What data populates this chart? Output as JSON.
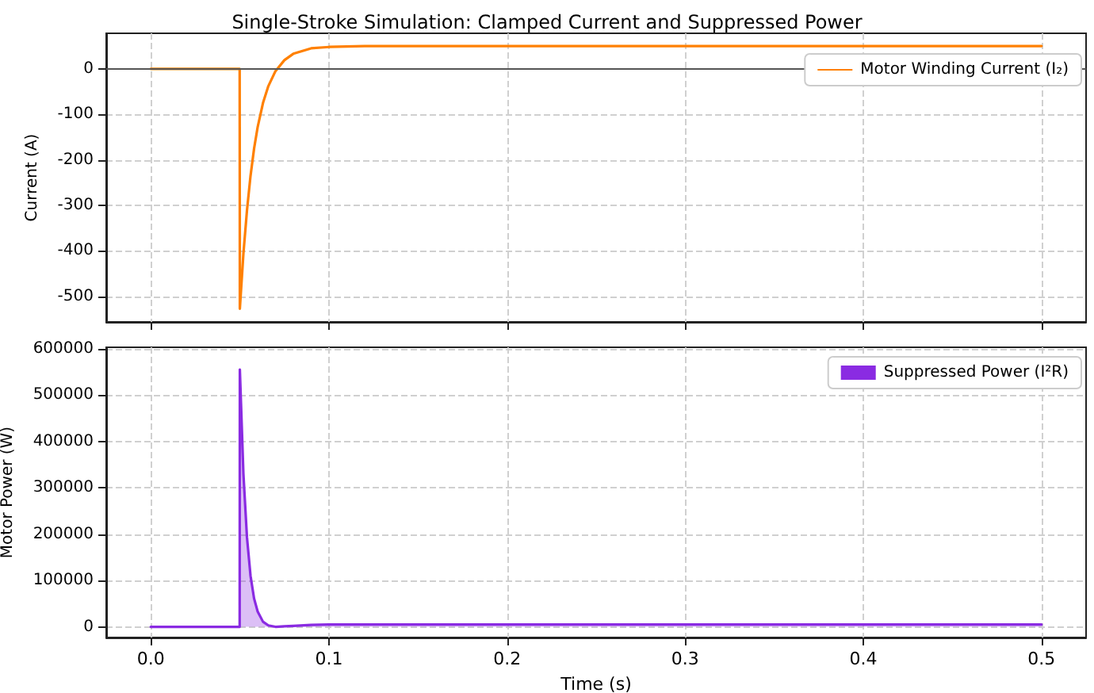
{
  "chart_data": [
    {
      "type": "line",
      "title": "Single-Stroke Simulation: Clamped Current and Suppressed Power",
      "ylabel": "Current (A)",
      "x": [
        0,
        0.0499,
        0.05,
        0.052,
        0.054,
        0.056,
        0.058,
        0.06,
        0.063,
        0.066,
        0.07,
        0.075,
        0.08,
        0.09,
        0.1,
        0.12,
        0.5
      ],
      "series": [
        {
          "name": "Motor Winding Current (I₂)",
          "color": "#ff8000",
          "values": [
            0,
            0,
            -527,
            -406,
            -311,
            -235,
            -175,
            -128,
            -75,
            -38,
            -5,
            19,
            33,
            45,
            48,
            50,
            50
          ]
        }
      ],
      "xlim": [
        -0.025,
        0.525
      ],
      "xticks": [
        0,
        0.1,
        0.2,
        0.3,
        0.4,
        0.5
      ],
      "ylim": [
        -556,
        78
      ],
      "yticks": [
        -500,
        -400,
        -300,
        -200,
        -100,
        0
      ],
      "ref_lines": [
        {
          "axis": "y",
          "value": 0,
          "color": "#555555"
        }
      ],
      "tick_labels": "y",
      "grid": true,
      "legend": "top right"
    },
    {
      "type": "area",
      "xlabel": "Time (s)",
      "ylabel": "Motor Power (W)",
      "x": [
        0,
        0.0499,
        0.05,
        0.052,
        0.054,
        0.056,
        0.058,
        0.06,
        0.063,
        0.066,
        0.07,
        0.075,
        0.08,
        0.09,
        0.1,
        0.12,
        0.5
      ],
      "series": [
        {
          "name": "Suppressed Power (I²R)",
          "color": "#8a2be2",
          "values": [
            0,
            0,
            555000,
            330000,
            193000,
            110000,
            61000,
            33000,
            11000,
            3000,
            0,
            1000,
            2000,
            4000,
            5000,
            5000,
            5000
          ]
        }
      ],
      "xlim": [
        -0.025,
        0.525
      ],
      "xticks": [
        {
          "value": 0,
          "label": "0.0"
        },
        {
          "value": 0.1,
          "label": "0.1"
        },
        {
          "value": 0.2,
          "label": "0.2"
        },
        {
          "value": 0.3,
          "label": "0.3"
        },
        {
          "value": 0.4,
          "label": "0.4"
        },
        {
          "value": 0.5,
          "label": "0.5"
        }
      ],
      "ylim": [
        -23000,
        603000
      ],
      "yticks": [
        0,
        100000,
        200000,
        300000,
        400000,
        500000,
        600000
      ],
      "grid": true,
      "legend": "top right"
    }
  ]
}
